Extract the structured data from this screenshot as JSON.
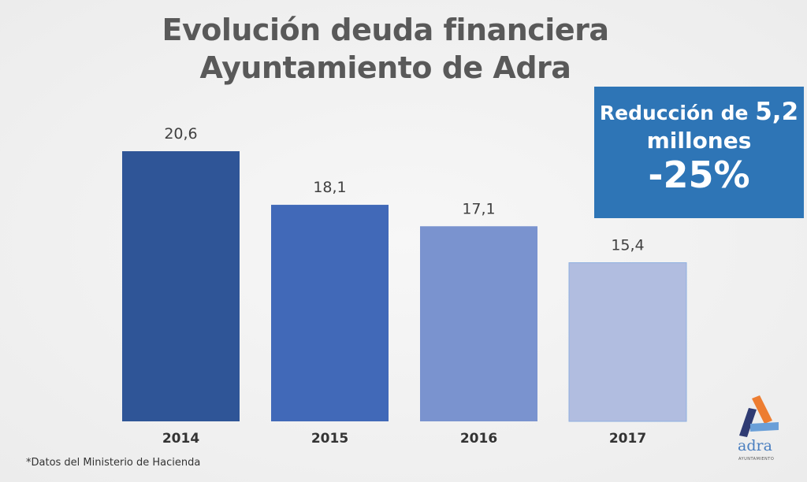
{
  "chart_data": {
    "type": "bar",
    "title": "Evolución deuda financiera Ayuntamiento de Adra",
    "title_lines": [
      "Evolución deuda financiera",
      "Ayuntamiento de Adra"
    ],
    "categories": [
      "2014",
      "2015",
      "2016",
      "2017"
    ],
    "values": [
      20.6,
      18.1,
      17.1,
      15.4
    ],
    "data_labels": [
      "20,6",
      "18,1",
      "17,1",
      "15,4"
    ],
    "colors": [
      "#2f5597",
      "#4169b8",
      "#7a93cf",
      "#b1bde0"
    ],
    "xlabel": "",
    "ylabel": "",
    "grid": false
  },
  "callout": {
    "line1": "Reducción de",
    "amount": "5,2",
    "line2": "millones",
    "line3": "-25%",
    "color": "#2e75b6"
  },
  "footnote": "*Datos del Ministerio de Hacienda",
  "logo": {
    "text": "adra",
    "subtext": "AYUNTAMIENTO"
  }
}
